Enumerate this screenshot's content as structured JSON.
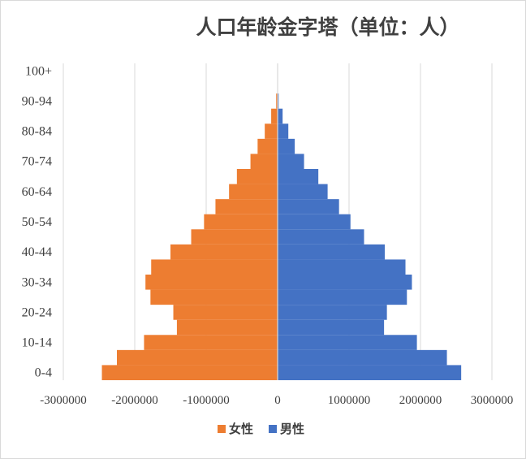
{
  "chart_data": {
    "type": "bar",
    "orientation": "horizontal",
    "layout": "population-pyramid",
    "title": "人口年龄金字塔（单位：人）",
    "categories_labeled": [
      "0-4",
      "10-14",
      "20-24",
      "30-34",
      "40-44",
      "50-54",
      "60-64",
      "70-74",
      "80-84",
      "90-94",
      "100+"
    ],
    "xticks": [
      -3000000,
      -2000000,
      -1000000,
      0,
      1000000,
      2000000,
      3000000
    ],
    "xtick_labels": [
      "-3000000",
      "-2000000",
      "-1000000",
      "0",
      "1000000",
      "2000000",
      "3000000"
    ],
    "xlim": [
      -3000000,
      3000000
    ],
    "grid": "vertical",
    "legend_position": "bottom",
    "series": [
      {
        "name": "女性",
        "color": "#ED7D31",
        "values": [
          -2460000,
          -2250000,
          -1870000,
          -1410000,
          -1460000,
          -1780000,
          -1850000,
          -1770000,
          -1500000,
          -1210000,
          -1030000,
          -870000,
          -680000,
          -570000,
          -380000,
          -280000,
          -180000,
          -90000,
          -20000,
          -5000,
          0
        ]
      },
      {
        "name": "男性",
        "color": "#4472C4",
        "values": [
          2570000,
          2370000,
          1950000,
          1490000,
          1530000,
          1810000,
          1880000,
          1790000,
          1500000,
          1210000,
          1020000,
          860000,
          700000,
          570000,
          370000,
          240000,
          150000,
          70000,
          15000,
          3000,
          0
        ]
      }
    ]
  }
}
